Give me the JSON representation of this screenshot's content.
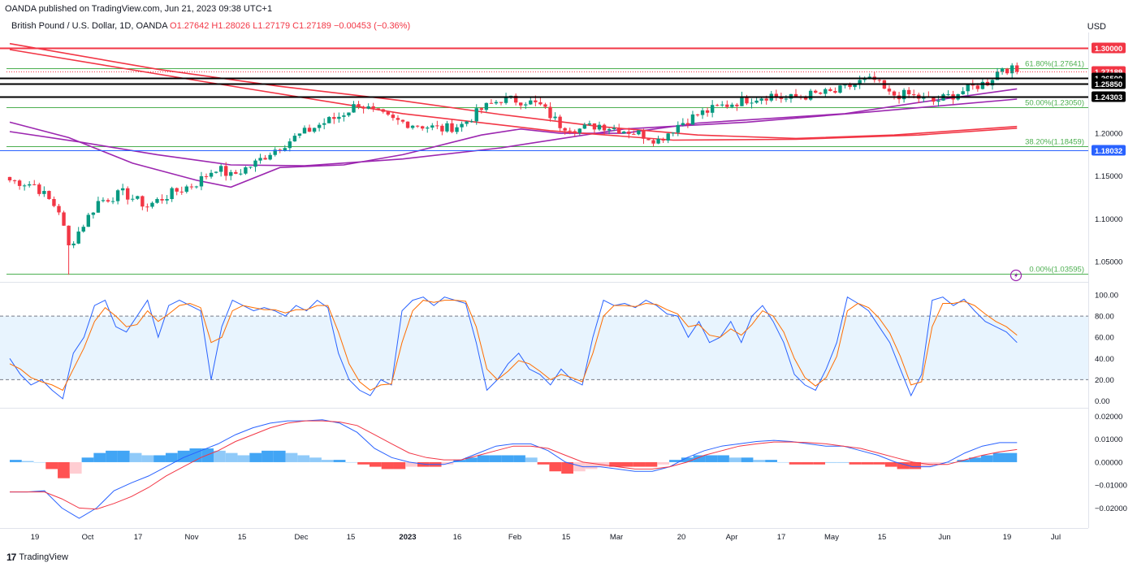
{
  "header": {
    "published": "OANDA published on TradingView.com, Jun 21, 2023 09:38 UTC+1",
    "symbol": "British Pound / U.S. Dollar, 1D, OANDA",
    "open": "O1.27642",
    "high": "H1.28026",
    "low": "L1.27179",
    "close": "C1.27189",
    "change": "−0.00453 (−0.36%)",
    "currency": "USD"
  },
  "footer": {
    "brand": "TradingView",
    "logo": "17"
  },
  "colors": {
    "up": "#089981",
    "down": "#f23645",
    "ma_purple": "#9c27b0",
    "ma_red": "#f23645",
    "stoch_k": "#2962ff",
    "stoch_d": "#ff6d00",
    "macd": "#2962ff",
    "signal": "#f23645",
    "fib": "#4caf50",
    "hline_red": "#f23645",
    "hline_black": "#000000",
    "hline_blue": "#2962ff"
  },
  "chart_data": [
    {
      "type": "candlestick",
      "pane": "price",
      "x_ticks": [
        "19",
        "Oct",
        "17",
        "Nov",
        "15",
        "Dec",
        "15",
        "2023",
        "16",
        "Feb",
        "15",
        "Mar",
        "20",
        "Apr",
        "17",
        "May",
        "15",
        "Jun",
        "19",
        "Jul"
      ],
      "y_ticks": [
        "1.05000",
        "1.10000",
        "1.15000",
        "1.20000"
      ],
      "ylim": [
        1.028,
        1.318
      ],
      "anchors": [
        {
          "i": 0,
          "v": 1.145
        },
        {
          "i": 5,
          "v": 1.14
        },
        {
          "i": 10,
          "v": 1.11
        },
        {
          "i": 12,
          "v": 1.067
        },
        {
          "i": 14,
          "v": 1.085
        },
        {
          "i": 18,
          "v": 1.12
        },
        {
          "i": 23,
          "v": 1.13
        },
        {
          "i": 28,
          "v": 1.115
        },
        {
          "i": 33,
          "v": 1.13
        },
        {
          "i": 38,
          "v": 1.142
        },
        {
          "i": 42,
          "v": 1.16
        },
        {
          "i": 45,
          "v": 1.15
        },
        {
          "i": 50,
          "v": 1.165
        },
        {
          "i": 53,
          "v": 1.178
        },
        {
          "i": 58,
          "v": 1.195
        },
        {
          "i": 63,
          "v": 1.21
        },
        {
          "i": 67,
          "v": 1.22
        },
        {
          "i": 71,
          "v": 1.235
        },
        {
          "i": 74,
          "v": 1.225
        },
        {
          "i": 78,
          "v": 1.215
        },
        {
          "i": 83,
          "v": 1.21
        },
        {
          "i": 88,
          "v": 1.205
        },
        {
          "i": 92,
          "v": 1.21
        },
        {
          "i": 96,
          "v": 1.228
        },
        {
          "i": 100,
          "v": 1.24
        },
        {
          "i": 105,
          "v": 1.238
        },
        {
          "i": 108,
          "v": 1.232
        },
        {
          "i": 112,
          "v": 1.21
        },
        {
          "i": 116,
          "v": 1.205
        },
        {
          "i": 120,
          "v": 1.21
        },
        {
          "i": 124,
          "v": 1.205
        },
        {
          "i": 128,
          "v": 1.2
        },
        {
          "i": 132,
          "v": 1.192
        },
        {
          "i": 136,
          "v": 1.21
        },
        {
          "i": 140,
          "v": 1.222
        },
        {
          "i": 145,
          "v": 1.232
        },
        {
          "i": 150,
          "v": 1.24
        },
        {
          "i": 155,
          "v": 1.245
        },
        {
          "i": 158,
          "v": 1.24
        },
        {
          "i": 163,
          "v": 1.245
        },
        {
          "i": 168,
          "v": 1.248
        },
        {
          "i": 173,
          "v": 1.26
        },
        {
          "i": 176,
          "v": 1.262
        },
        {
          "i": 179,
          "v": 1.245
        },
        {
          "i": 183,
          "v": 1.245
        },
        {
          "i": 188,
          "v": 1.237
        },
        {
          "i": 192,
          "v": 1.245
        },
        {
          "i": 195,
          "v": 1.252
        },
        {
          "i": 199,
          "v": 1.26
        },
        {
          "i": 202,
          "v": 1.278
        },
        {
          "i": 205,
          "v": 1.272
        }
      ],
      "horizontal_levels": [
        {
          "value": 1.3,
          "label": "1.30000",
          "color": "#f23645"
        },
        {
          "value": 1.2719,
          "label": "1.27189",
          "color": "#f23645"
        },
        {
          "value": 1.265,
          "label": "1.26500",
          "color": "#000000"
        },
        {
          "value": 1.2585,
          "label": "1.25850",
          "color": "#000000"
        },
        {
          "value": 1.243,
          "label": "1.24303",
          "color": "#000000"
        },
        {
          "value": 1.1803,
          "label": "1.18032",
          "color": "#2962ff"
        }
      ],
      "fib_levels": [
        {
          "value": 1.27641,
          "label": "61.80%(1.27641)"
        },
        {
          "value": 1.2305,
          "label": "50.00%(1.23050)"
        },
        {
          "value": 1.18459,
          "label": "38.20%(1.18459)"
        },
        {
          "value": 1.03595,
          "label": "0.00%(1.03595)"
        }
      ],
      "moving_averages": [
        {
          "color": "#9c27b0",
          "points": [
            [
              0,
              1.213
            ],
            [
              12,
              1.195
            ],
            [
              25,
              1.165
            ],
            [
              38,
              1.145
            ],
            [
              45,
              1.137
            ],
            [
              55,
              1.16
            ],
            [
              68,
              1.163
            ],
            [
              80,
              1.175
            ],
            [
              96,
              1.198
            ],
            [
              104,
              1.205
            ],
            [
              112,
              1.2
            ],
            [
              125,
              1.2
            ],
            [
              140,
              1.212
            ],
            [
              170,
              1.223
            ],
            [
              185,
              1.236
            ],
            [
              205,
              1.252
            ]
          ]
        },
        {
          "color": "#9c27b0",
          "points": [
            [
              0,
              1.202
            ],
            [
              14,
              1.19
            ],
            [
              30,
              1.175
            ],
            [
              45,
              1.163
            ],
            [
              60,
              1.162
            ],
            [
              80,
              1.17
            ],
            [
              100,
              1.183
            ],
            [
              125,
              1.205
            ],
            [
              150,
              1.213
            ],
            [
              175,
              1.225
            ],
            [
              205,
              1.24
            ]
          ]
        },
        {
          "color": "#f23645",
          "points": [
            [
              0,
              1.305
            ],
            [
              30,
              1.275
            ],
            [
              55,
              1.255
            ],
            [
              80,
              1.238
            ],
            [
              100,
              1.222
            ],
            [
              120,
              1.208
            ],
            [
              140,
              1.198
            ],
            [
              160,
              1.194
            ],
            [
              180,
              1.198
            ],
            [
              205,
              1.208
            ]
          ]
        },
        {
          "color": "#f23645",
          "points": [
            [
              0,
              1.298
            ],
            [
              40,
              1.26
            ],
            [
              80,
              1.223
            ],
            [
              110,
              1.203
            ],
            [
              135,
              1.192
            ],
            [
              160,
              1.193
            ],
            [
              185,
              1.198
            ],
            [
              205,
              1.206
            ]
          ]
        }
      ]
    },
    {
      "type": "line",
      "pane": "stochastic",
      "ylim": [
        -5,
        110
      ],
      "y_ticks": [
        "0.00",
        "20.00",
        "40.00",
        "60.00",
        "80.00",
        "100.00"
      ],
      "band": [
        20,
        80
      ],
      "series": [
        {
          "color": "#2962ff",
          "values": [
            40,
            25,
            15,
            20,
            10,
            2,
            45,
            60,
            90,
            95,
            70,
            65,
            80,
            95,
            60,
            90,
            95,
            90,
            85,
            20,
            70,
            95,
            90,
            85,
            88,
            85,
            80,
            90,
            85,
            95,
            88,
            45,
            20,
            10,
            5,
            20,
            15,
            85,
            95,
            98,
            90,
            98,
            95,
            92,
            55,
            10,
            20,
            35,
            45,
            30,
            25,
            15,
            30,
            20,
            15,
            60,
            95,
            90,
            92,
            88,
            95,
            90,
            82,
            80,
            60,
            75,
            55,
            60,
            75,
            55,
            80,
            90,
            75,
            55,
            25,
            15,
            10,
            30,
            55,
            98,
            92,
            85,
            70,
            55,
            30,
            5,
            25,
            95,
            98,
            90,
            96,
            85,
            75,
            70,
            65,
            55
          ]
        },
        {
          "color": "#ff6d00",
          "values": [
            35,
            30,
            22,
            18,
            15,
            10,
            30,
            50,
            75,
            88,
            80,
            70,
            72,
            85,
            75,
            82,
            90,
            92,
            88,
            55,
            60,
            85,
            90,
            88,
            86,
            86,
            83,
            86,
            86,
            90,
            90,
            65,
            35,
            18,
            10,
            15,
            16,
            55,
            85,
            95,
            93,
            95,
            95,
            94,
            70,
            30,
            20,
            28,
            38,
            35,
            28,
            20,
            25,
            22,
            18,
            45,
            80,
            90,
            90,
            89,
            92,
            91,
            86,
            82,
            70,
            72,
            62,
            60,
            68,
            62,
            72,
            85,
            80,
            65,
            40,
            22,
            14,
            22,
            42,
            85,
            92,
            88,
            78,
            64,
            42,
            15,
            18,
            70,
            92,
            92,
            94,
            90,
            82,
            75,
            70,
            62
          ]
        }
      ]
    },
    {
      "type": "line",
      "pane": "macd",
      "ylim": [
        -0.028,
        0.023
      ],
      "y_ticks": [
        "−0.02000",
        "−0.01000",
        "0.00000",
        "0.01000",
        "0.02000"
      ],
      "histogram": [
        0.001,
        0.0005,
        0,
        -0.003,
        -0.007,
        -0.005,
        0.002,
        0.004,
        0.005,
        0.005,
        0.004,
        0.003,
        0.003,
        0.004,
        0.005,
        0.006,
        0.006,
        0.005,
        0.004,
        0.003,
        0.004,
        0.005,
        0.005,
        0.004,
        0.003,
        0.002,
        0.001,
        0.001,
        0,
        -0.001,
        -0.002,
        -0.003,
        -0.003,
        -0.002,
        -0.002,
        -0.002,
        -0.001,
        0.001,
        0.002,
        0.003,
        0.003,
        0.003,
        0.003,
        0.002,
        -0.001,
        -0.004,
        -0.005,
        -0.004,
        -0.003,
        -0.002,
        -0.002,
        -0.002,
        -0.002,
        -0.002,
        -0.001,
        0.001,
        0.002,
        0.003,
        0.003,
        0.003,
        0.002,
        0.002,
        0.001,
        0.001,
        0,
        -0.001,
        -0.001,
        -0.001,
        0,
        0,
        -0.001,
        -0.001,
        -0.001,
        -0.002,
        -0.003,
        -0.003,
        -0.002,
        -0.001,
        0,
        0.001,
        0.002,
        0.003,
        0.004,
        0.004
      ],
      "series": [
        {
          "color": "#2962ff",
          "values": [
            -0.013,
            -0.013,
            -0.0125,
            -0.02,
            -0.0245,
            -0.02,
            -0.0125,
            -0.009,
            -0.006,
            -0.002,
            0.002,
            0.005,
            0.008,
            0.012,
            0.015,
            0.017,
            0.018,
            0.018,
            0.0185,
            0.017,
            0.013,
            0.006,
            0.002,
            0.0,
            -0.001,
            -0.001,
            0.001,
            0.004,
            0.007,
            0.008,
            0.008,
            0.005,
            0.0,
            -0.002,
            -0.002,
            -0.003,
            -0.004,
            -0.004,
            -0.002,
            0.002,
            0.005,
            0.007,
            0.008,
            0.009,
            0.0095,
            0.009,
            0.008,
            0.007,
            0.007,
            0.005,
            0.003,
            0.0,
            -0.002,
            -0.002,
            0.0,
            0.004,
            0.007,
            0.0085,
            0.0085
          ]
        },
        {
          "color": "#f23645",
          "values": [
            -0.013,
            -0.013,
            -0.013,
            -0.016,
            -0.02,
            -0.0205,
            -0.018,
            -0.015,
            -0.011,
            -0.006,
            -0.002,
            0.002,
            0.005,
            0.009,
            0.012,
            0.015,
            0.017,
            0.018,
            0.018,
            0.0175,
            0.016,
            0.012,
            0.008,
            0.004,
            0.002,
            0.001,
            0.001,
            0.003,
            0.005,
            0.007,
            0.007,
            0.006,
            0.003,
            0.0,
            -0.001,
            -0.002,
            -0.003,
            -0.003,
            -0.002,
            0.0,
            0.003,
            0.005,
            0.007,
            0.008,
            0.0088,
            0.0088,
            0.0085,
            0.008,
            0.007,
            0.006,
            0.004,
            0.002,
            0.0,
            -0.001,
            -0.001,
            0.001,
            0.003,
            0.0045,
            0.0055
          ]
        }
      ]
    }
  ]
}
